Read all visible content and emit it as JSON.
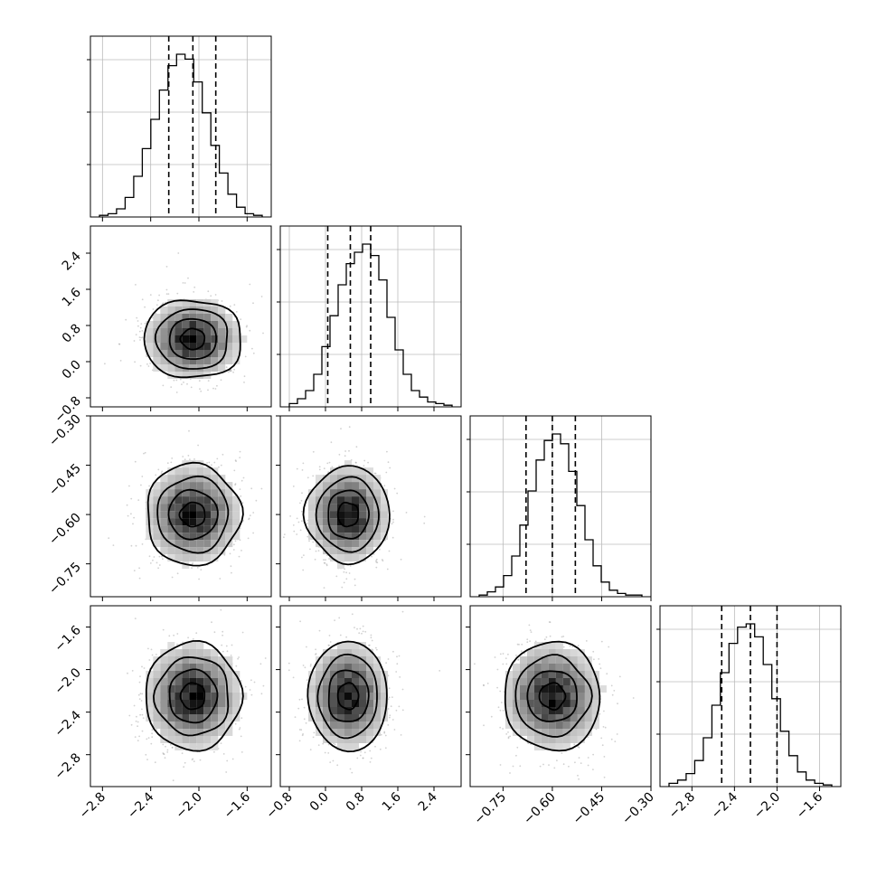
{
  "chart_data": {
    "type": "corner",
    "parameters": [
      {
        "id": "p0",
        "range": [
          -2.9,
          -1.4
        ],
        "ticks": [
          -2.8,
          -2.4,
          -2.0,
          -1.6
        ],
        "tick_labels": [
          "−2.8",
          "−2.4",
          "−2.0",
          "−1.6"
        ],
        "mean": -2.05,
        "sd": 0.2,
        "quantiles": [
          -2.25,
          -2.05,
          -1.86
        ]
      },
      {
        "id": "p1",
        "range": [
          -1.0,
          3.0
        ],
        "ticks": [
          -0.8,
          0.0,
          0.8,
          1.6,
          2.4
        ],
        "tick_labels": [
          "−0.8",
          "0.0",
          "0.8",
          "1.6",
          "2.4"
        ],
        "mean": 0.5,
        "sd": 0.45,
        "quantiles": [
          0.05,
          0.55,
          1.0
        ]
      },
      {
        "id": "p2",
        "range": [
          -0.85,
          -0.3
        ],
        "ticks": [
          -0.75,
          -0.6,
          -0.45,
          -0.3
        ],
        "tick_labels": [
          "−0.75",
          "−0.60",
          "−0.45",
          "−0.30"
        ],
        "mean": -0.6,
        "sd": 0.075,
        "quantiles": [
          -0.68,
          -0.6,
          -0.53
        ]
      },
      {
        "id": "p3",
        "range": [
          -3.1,
          -1.4
        ],
        "ticks": [
          -2.8,
          -2.4,
          -2.0,
          -1.6
        ],
        "tick_labels": [
          "−2.8",
          "−2.4",
          "−2.0",
          "−1.6"
        ],
        "mean": -2.25,
        "sd": 0.25,
        "quantiles": [
          -2.52,
          -2.25,
          -2.0
        ]
      }
    ],
    "histograms": [
      {
        "param": "p0",
        "counts": [
          1,
          2,
          5,
          12,
          25,
          42,
          60,
          78,
          93,
          100,
          97,
          83,
          64,
          44,
          27,
          14,
          6,
          2,
          1
        ]
      },
      {
        "param": "p1",
        "counts": [
          2,
          5,
          10,
          20,
          37,
          56,
          75,
          88,
          95,
          100,
          93,
          78,
          55,
          35,
          20,
          10,
          6,
          3,
          2,
          1
        ]
      },
      {
        "param": "p2",
        "counts": [
          1,
          3,
          6,
          13,
          25,
          44,
          65,
          84,
          96,
          100,
          94,
          77,
          56,
          35,
          19,
          9,
          4,
          2,
          1,
          1
        ]
      },
      {
        "param": "p3",
        "counts": [
          2,
          4,
          8,
          16,
          30,
          50,
          70,
          88,
          98,
          100,
          92,
          75,
          54,
          34,
          19,
          9,
          4,
          2,
          1
        ]
      }
    ],
    "grid": true
  }
}
